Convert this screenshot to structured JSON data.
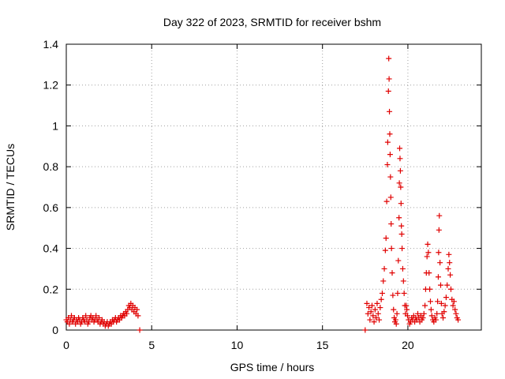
{
  "chart_data": {
    "type": "scatter",
    "title": "Day 322 of 2023, SRMTID for receiver bshm",
    "xlabel": "GPS time / hours",
    "ylabel": "SRMTID / TECUs",
    "xlim": [
      0,
      24.3
    ],
    "ylim": [
      0,
      1.4
    ],
    "x_ticks": [
      0,
      5,
      10,
      15,
      20
    ],
    "x_tick_labels": [
      "0",
      "5",
      "10",
      "15",
      "20"
    ],
    "y_ticks": [
      0,
      0.2,
      0.4,
      0.6,
      0.8,
      1.0,
      1.2,
      1.4
    ],
    "y_tick_labels": [
      "0",
      "0.2",
      "0.4",
      "0.6",
      "0.8",
      "1",
      "1.2",
      "1.4"
    ],
    "grid": true,
    "marker": "+",
    "colors": {
      "series": "#e00000",
      "grid": "#a0a0a0",
      "axis": "#000000"
    },
    "series": [
      {
        "name": "SRMTID",
        "points": [
          [
            0.0,
            0.05
          ],
          [
            0.06,
            0.04
          ],
          [
            0.12,
            0.06
          ],
          [
            0.18,
            0.03
          ],
          [
            0.24,
            0.05
          ],
          [
            0.3,
            0.07
          ],
          [
            0.36,
            0.04
          ],
          [
            0.42,
            0.05
          ],
          [
            0.48,
            0.06
          ],
          [
            0.54,
            0.03
          ],
          [
            0.6,
            0.05
          ],
          [
            0.66,
            0.04
          ],
          [
            0.72,
            0.06
          ],
          [
            0.78,
            0.05
          ],
          [
            0.84,
            0.03
          ],
          [
            0.9,
            0.04
          ],
          [
            0.96,
            0.06
          ],
          [
            1.02,
            0.05
          ],
          [
            1.08,
            0.04
          ],
          [
            1.14,
            0.07
          ],
          [
            1.2,
            0.05
          ],
          [
            1.26,
            0.03
          ],
          [
            1.32,
            0.04
          ],
          [
            1.38,
            0.06
          ],
          [
            1.44,
            0.07
          ],
          [
            1.5,
            0.05
          ],
          [
            1.56,
            0.06
          ],
          [
            1.62,
            0.04
          ],
          [
            1.68,
            0.05
          ],
          [
            1.74,
            0.07
          ],
          [
            1.8,
            0.05
          ],
          [
            1.86,
            0.04
          ],
          [
            1.92,
            0.06
          ],
          [
            1.98,
            0.03
          ],
          [
            2.04,
            0.04
          ],
          [
            2.1,
            0.05
          ],
          [
            2.16,
            0.03
          ],
          [
            2.22,
            0.04
          ],
          [
            2.28,
            0.02
          ],
          [
            2.34,
            0.03
          ],
          [
            2.4,
            0.04
          ],
          [
            2.46,
            0.02
          ],
          [
            2.52,
            0.03
          ],
          [
            2.58,
            0.04
          ],
          [
            2.64,
            0.03
          ],
          [
            2.7,
            0.05
          ],
          [
            2.76,
            0.04
          ],
          [
            2.82,
            0.05
          ],
          [
            2.88,
            0.06
          ],
          [
            2.94,
            0.04
          ],
          [
            3.0,
            0.05
          ],
          [
            3.06,
            0.06
          ],
          [
            3.12,
            0.05
          ],
          [
            3.18,
            0.07
          ],
          [
            3.24,
            0.06
          ],
          [
            3.3,
            0.07
          ],
          [
            3.36,
            0.08
          ],
          [
            3.42,
            0.07
          ],
          [
            3.48,
            0.09
          ],
          [
            3.54,
            0.08
          ],
          [
            3.6,
            0.1
          ],
          [
            3.66,
            0.12
          ],
          [
            3.72,
            0.11
          ],
          [
            3.78,
            0.13
          ],
          [
            3.84,
            0.1
          ],
          [
            3.9,
            0.12
          ],
          [
            3.96,
            0.09
          ],
          [
            4.02,
            0.11
          ],
          [
            4.08,
            0.08
          ],
          [
            4.14,
            0.1
          ],
          [
            4.2,
            0.07
          ],
          [
            4.3,
            0.0
          ],
          [
            17.5,
            0.0
          ],
          [
            17.6,
            0.13
          ],
          [
            17.66,
            0.08
          ],
          [
            17.72,
            0.11
          ],
          [
            17.78,
            0.05
          ],
          [
            17.84,
            0.09
          ],
          [
            17.9,
            0.12
          ],
          [
            17.96,
            0.07
          ],
          [
            18.02,
            0.04
          ],
          [
            18.08,
            0.1
          ],
          [
            18.14,
            0.06
          ],
          [
            18.2,
            0.13
          ],
          [
            18.26,
            0.08
          ],
          [
            18.32,
            0.05
          ],
          [
            18.38,
            0.11
          ],
          [
            18.44,
            0.15
          ],
          [
            18.5,
            0.18
          ],
          [
            18.56,
            0.24
          ],
          [
            18.62,
            0.3
          ],
          [
            18.68,
            0.39
          ],
          [
            18.72,
            0.45
          ],
          [
            18.76,
            0.63
          ],
          [
            18.8,
            0.81
          ],
          [
            18.82,
            0.92
          ],
          [
            18.86,
            1.17
          ],
          [
            18.88,
            1.33
          ],
          [
            18.9,
            1.23
          ],
          [
            18.92,
            1.07
          ],
          [
            18.94,
            0.96
          ],
          [
            18.96,
            0.86
          ],
          [
            18.98,
            0.75
          ],
          [
            19.0,
            0.65
          ],
          [
            19.02,
            0.52
          ],
          [
            19.04,
            0.4
          ],
          [
            19.08,
            0.28
          ],
          [
            19.12,
            0.17
          ],
          [
            19.16,
            0.1
          ],
          [
            19.2,
            0.06
          ],
          [
            19.24,
            0.04
          ],
          [
            19.28,
            0.05
          ],
          [
            19.32,
            0.03
          ],
          [
            19.36,
            0.08
          ],
          [
            19.4,
            0.18
          ],
          [
            19.44,
            0.34
          ],
          [
            19.48,
            0.55
          ],
          [
            19.5,
            0.72
          ],
          [
            19.52,
            0.89
          ],
          [
            19.54,
            0.84
          ],
          [
            19.56,
            0.78
          ],
          [
            19.58,
            0.7
          ],
          [
            19.6,
            0.62
          ],
          [
            19.62,
            0.51
          ],
          [
            19.64,
            0.47
          ],
          [
            19.66,
            0.4
          ],
          [
            19.7,
            0.3
          ],
          [
            19.74,
            0.24
          ],
          [
            19.78,
            0.18
          ],
          [
            19.82,
            0.12
          ],
          [
            19.86,
            0.08
          ],
          [
            19.9,
            0.12
          ],
          [
            19.94,
            0.1
          ],
          [
            19.98,
            0.07
          ],
          [
            20.04,
            0.05
          ],
          [
            20.1,
            0.03
          ],
          [
            20.16,
            0.04
          ],
          [
            20.22,
            0.06
          ],
          [
            20.28,
            0.05
          ],
          [
            20.34,
            0.07
          ],
          [
            20.4,
            0.04
          ],
          [
            20.46,
            0.06
          ],
          [
            20.52,
            0.05
          ],
          [
            20.58,
            0.08
          ],
          [
            20.64,
            0.06
          ],
          [
            20.7,
            0.04
          ],
          [
            20.76,
            0.07
          ],
          [
            20.82,
            0.05
          ],
          [
            20.88,
            0.06
          ],
          [
            20.94,
            0.08
          ],
          [
            21.0,
            0.12
          ],
          [
            21.04,
            0.2
          ],
          [
            21.08,
            0.28
          ],
          [
            21.12,
            0.36
          ],
          [
            21.16,
            0.42
          ],
          [
            21.2,
            0.38
          ],
          [
            21.24,
            0.28
          ],
          [
            21.28,
            0.2
          ],
          [
            21.32,
            0.14
          ],
          [
            21.36,
            0.1
          ],
          [
            21.4,
            0.07
          ],
          [
            21.46,
            0.05
          ],
          [
            21.52,
            0.04
          ],
          [
            21.58,
            0.06
          ],
          [
            21.64,
            0.05
          ],
          [
            21.7,
            0.08
          ],
          [
            21.74,
            0.14
          ],
          [
            21.78,
            0.26
          ],
          [
            21.8,
            0.38
          ],
          [
            21.82,
            0.49
          ],
          [
            21.84,
            0.56
          ],
          [
            21.88,
            0.33
          ],
          [
            21.92,
            0.22
          ],
          [
            21.96,
            0.13
          ],
          [
            22.0,
            0.08
          ],
          [
            22.06,
            0.06
          ],
          [
            22.12,
            0.09
          ],
          [
            22.18,
            0.12
          ],
          [
            22.24,
            0.16
          ],
          [
            22.3,
            0.22
          ],
          [
            22.36,
            0.3
          ],
          [
            22.4,
            0.37
          ],
          [
            22.44,
            0.33
          ],
          [
            22.48,
            0.27
          ],
          [
            22.52,
            0.2
          ],
          [
            22.58,
            0.15
          ],
          [
            22.64,
            0.12
          ],
          [
            22.7,
            0.14
          ],
          [
            22.76,
            0.1
          ],
          [
            22.82,
            0.08
          ],
          [
            22.88,
            0.06
          ],
          [
            22.94,
            0.05
          ]
        ]
      }
    ]
  }
}
